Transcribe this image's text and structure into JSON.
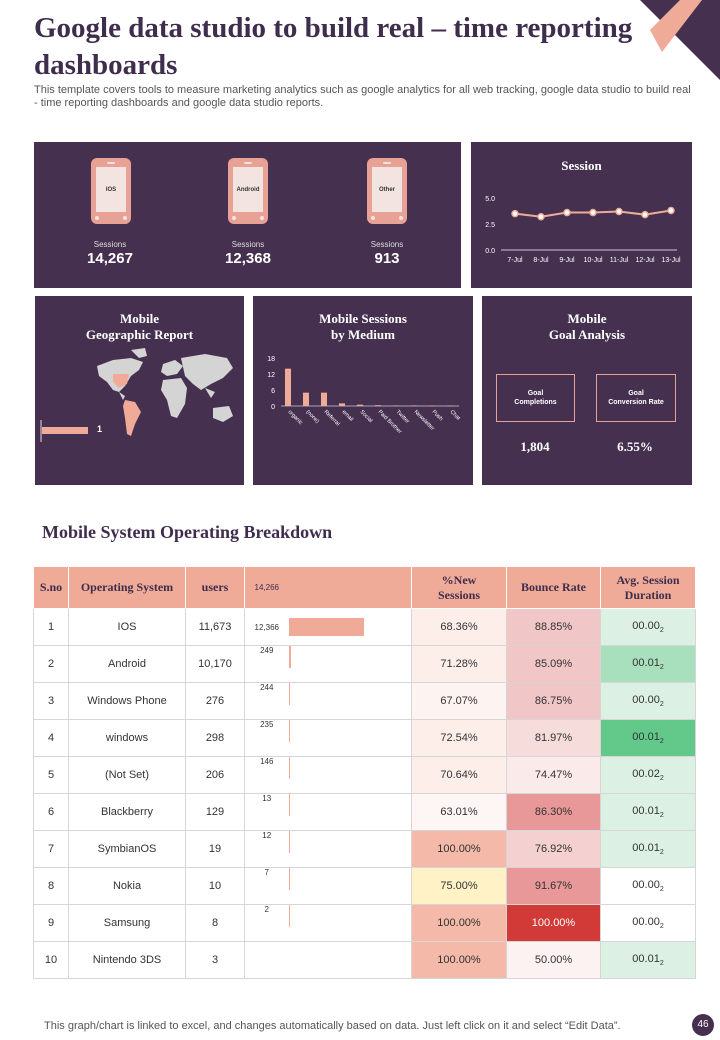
{
  "header": {
    "title": "Google data studio to build real – time reporting dashboards",
    "subtitle": "This template covers tools to measure marketing analytics such as google analytics for all web tracking, google data studio to build real - time reporting  dashboards and google data studio reports."
  },
  "devices": [
    {
      "name": "IOS",
      "label": "Sessions",
      "value": "14,267"
    },
    {
      "name": "Android",
      "label": "Sessions",
      "value": "12,368"
    },
    {
      "name": "Other",
      "label": "Sessions",
      "value": "913"
    }
  ],
  "session_panel": {
    "title": "Session"
  },
  "geo_panel": {
    "title_line1": "Mobile",
    "title_line2": "Geographic Report",
    "legend_value": "1"
  },
  "medium_panel": {
    "title_line1": "Mobile Sessions",
    "title_line2": "by Medium"
  },
  "goal_panel": {
    "title_line1": "Mobile",
    "title_line2": "Goal Analysis",
    "goals": [
      {
        "label_line1": "Goal",
        "label_line2": "Completions",
        "value": "1,804"
      },
      {
        "label_line1": "Goal",
        "label_line2": "Conversion Rate",
        "value": "6.55%"
      }
    ]
  },
  "chart_data": [
    {
      "type": "line",
      "title": "Session",
      "x": [
        "7-Jul",
        "8-Jul",
        "9-Jul",
        "10-Jul",
        "11-Jul",
        "12-Jul",
        "13-Jul"
      ],
      "series": [
        {
          "values": [
            3.5,
            3.2,
            3.6,
            3.6,
            3.7,
            3.4,
            3.8
          ]
        }
      ],
      "yticks": [
        "0.0",
        "2.5",
        "5.0"
      ],
      "ylim": [
        0,
        5
      ]
    },
    {
      "type": "bar",
      "title": "Mobile Sessions by Medium",
      "categories": [
        "organic",
        "(none)",
        "Referral",
        "email",
        "Social",
        "Paid Brother",
        "Twitter",
        "Newsletter",
        "Push",
        "Chat"
      ],
      "values": [
        14,
        5,
        5,
        1,
        0.5,
        0.3,
        0.2,
        0.2,
        0.1,
        0.1
      ],
      "yticks": [
        "0",
        "6",
        "12",
        "18"
      ],
      "ylim": [
        0,
        18
      ]
    },
    {
      "type": "bar",
      "title": "users",
      "categories": [
        "IOS",
        "Android",
        "Windows Phone",
        "windows",
        "(Not Set)",
        "Blackberry",
        "SymbianOS",
        "Nokia",
        "Samsung",
        "Nintendo 3DS"
      ],
      "values": [
        14266,
        12366,
        249,
        244,
        235,
        146,
        13,
        12,
        7,
        2
      ]
    }
  ],
  "table": {
    "title": "Mobile System Operating Breakdown",
    "headers": {
      "sno": "S.no",
      "os": "Operating System",
      "users": "users",
      "new_line1": "%New",
      "new_line2": "Sessions",
      "bounce": "Bounce Rate",
      "avg_line1": "Avg. Session",
      "avg_line2": "Duration"
    },
    "header_bar_label": "14,266",
    "rows": [
      {
        "sno": "1",
        "os": "IOS",
        "users": "11,673",
        "bar_label": "12,366",
        "new": "68.36%",
        "bounce": "88.85%",
        "avg": "00.00",
        "avg_sub": "2"
      },
      {
        "sno": "2",
        "os": "Android",
        "users": "10,170",
        "bar_label": "249",
        "new": "71.28%",
        "bounce": "85.09%",
        "avg": "00.01",
        "avg_sub": "2"
      },
      {
        "sno": "3",
        "os": "Windows Phone",
        "users": "276",
        "bar_label": "244",
        "new": "67.07%",
        "bounce": "86.75%",
        "avg": "00.00",
        "avg_sub": "2"
      },
      {
        "sno": "4",
        "os": "windows",
        "users": "298",
        "bar_label": "235",
        "new": "72.54%",
        "bounce": "81.97%",
        "avg": "00.01",
        "avg_sub": "2"
      },
      {
        "sno": "5",
        "os": "(Not Set)",
        "users": "206",
        "bar_label": "146",
        "new": "70.64%",
        "bounce": "74.47%",
        "avg": "00.02",
        "avg_sub": "2"
      },
      {
        "sno": "6",
        "os": "Blackberry",
        "users": "129",
        "bar_label": "13",
        "new": "63.01%",
        "bounce": "86.30%",
        "avg": "00.01",
        "avg_sub": "2"
      },
      {
        "sno": "7",
        "os": "SymbianOS",
        "users": "19",
        "bar_label": "12",
        "new": "100.00%",
        "bounce": "76.92%",
        "avg": "00.01",
        "avg_sub": "2"
      },
      {
        "sno": "8",
        "os": "Nokia",
        "users": "10",
        "bar_label": "7",
        "new": "75.00%",
        "bounce": "91.67%",
        "avg": "00.00",
        "avg_sub": "2"
      },
      {
        "sno": "9",
        "os": "Samsung",
        "users": "8",
        "bar_label": "2",
        "new": "100.00%",
        "bounce": "100.00%",
        "avg": "00.00",
        "avg_sub": "2"
      },
      {
        "sno": "10",
        "os": "Nintendo 3DS",
        "users": "3",
        "bar_label": "",
        "new": "100.00%",
        "bounce": "50.00%",
        "avg": "00.01",
        "avg_sub": "2"
      }
    ],
    "colors": {
      "new": [
        "#fdeeea",
        "#fdeeea",
        "#fdf3f1",
        "#fdeeea",
        "#fdeeea",
        "#fdf6f4",
        "#f4b9a8",
        "#fff2c6",
        "#f4b9a8",
        "#f4b9a8"
      ],
      "bounce": [
        "#f1c6c6",
        "#f1c6c6",
        "#f1c6c6",
        "#f7dcdc",
        "#fbeaea",
        "#e89898",
        "#f5d0d0",
        "#e89898",
        "#d13a36",
        "#fdf2f2"
      ],
      "avg": [
        "#dcf1e3",
        "#a8dfbd",
        "#dcf1e3",
        "#62c98b",
        "#dcf1e3",
        "#dcf1e3",
        "#dcf1e3",
        "#ffffff",
        "#ffffff",
        "#dcf1e3"
      ]
    }
  },
  "footer": {
    "note": "This graph/chart is linked to excel,  and changes automatically based on data. Just left click on it and select “Edit Data”.",
    "page": "46"
  },
  "colors": {
    "panel": "#45314f",
    "accent": "#efab98",
    "title": "#3f2d4d"
  }
}
